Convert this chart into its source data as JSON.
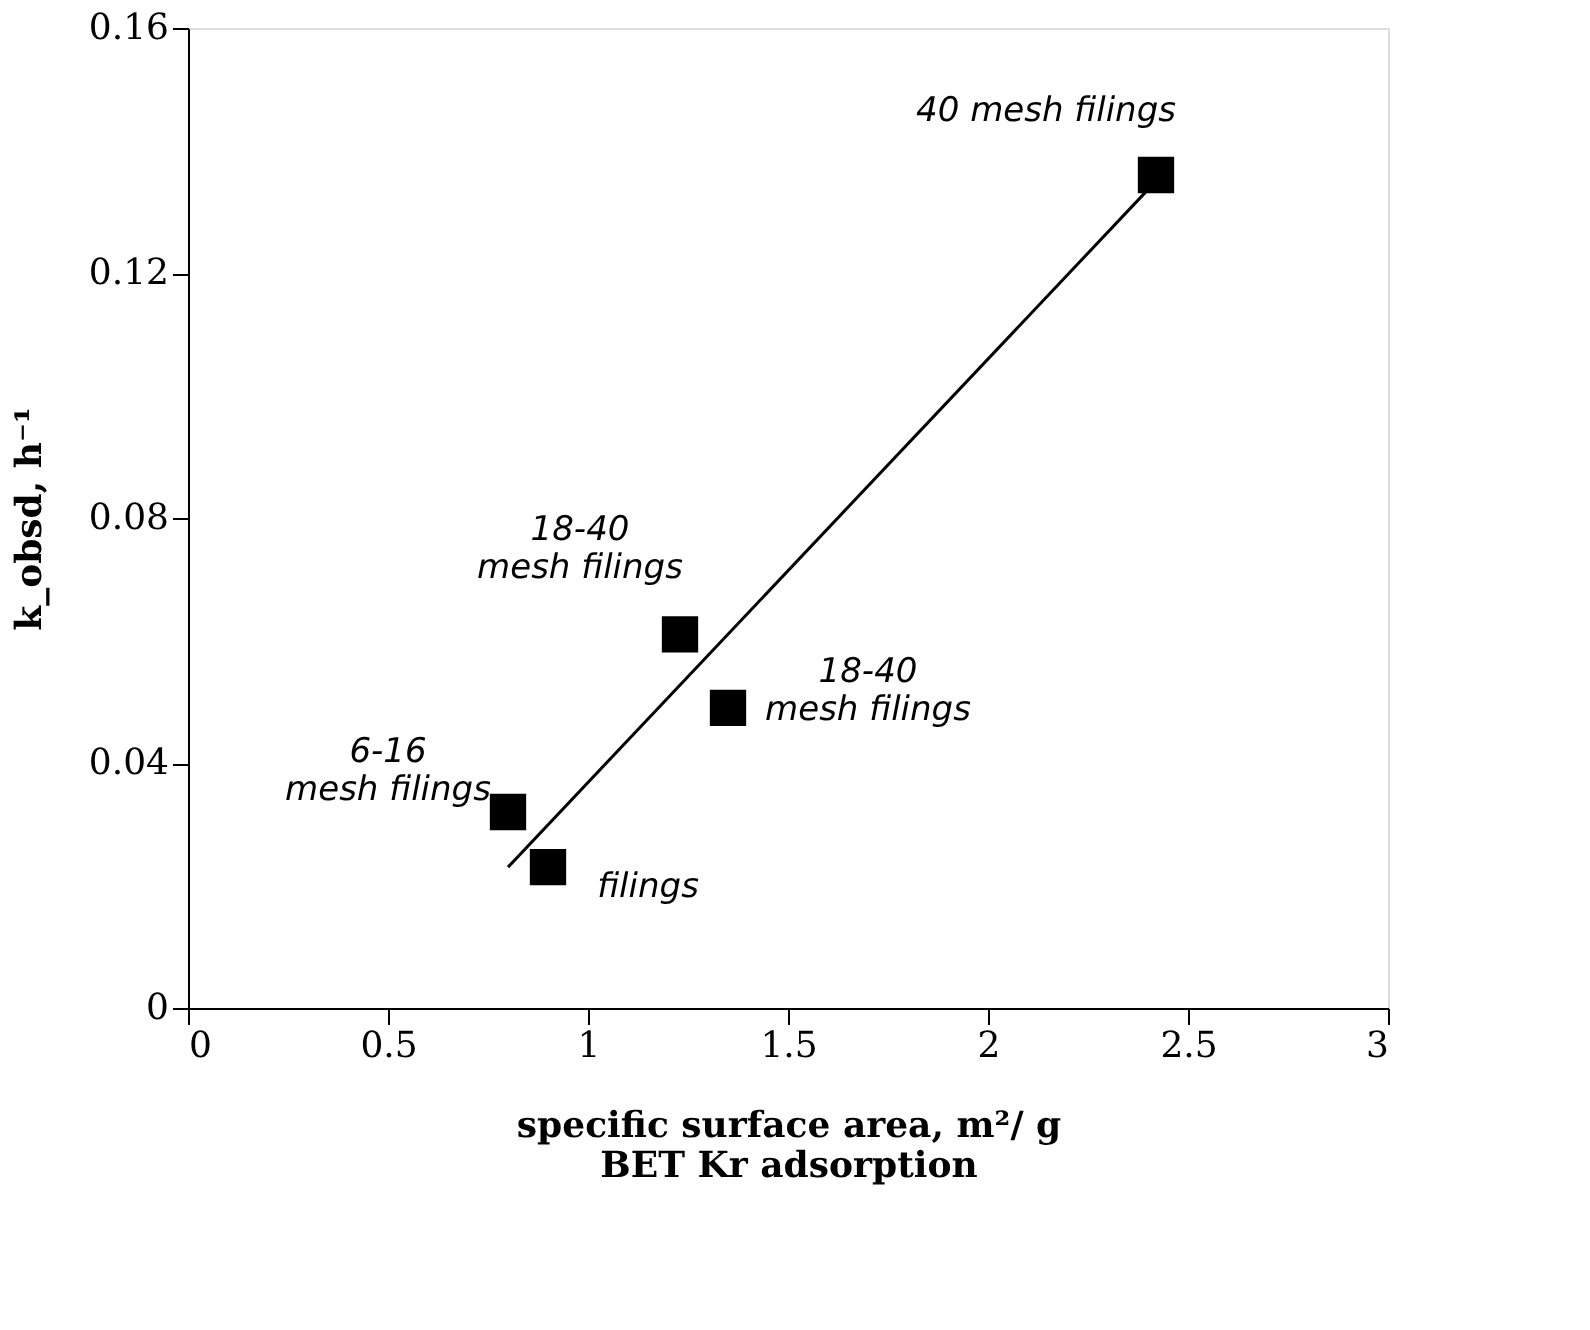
{
  "chart_data": {
    "type": "scatter",
    "xlabel": "specific surface area, m²/ g\nBET Kr adsorption",
    "ylabel": "k_obsd, h⁻¹",
    "xlim": [
      0,
      3
    ],
    "xticks": [
      0,
      0.5,
      1,
      1.5,
      2,
      2.5,
      3
    ],
    "ylim": [
      0,
      0.16
    ],
    "yticks": [
      0,
      0.04,
      0.08,
      0.12,
      0.16
    ],
    "series": [
      {
        "color": "#000000",
        "marker": "square",
        "x": [
          0.8,
          0.9,
          1.23,
          1.35,
          2.42
        ],
        "values": [
          0.032,
          0.023,
          0.061,
          0.049,
          0.136
        ]
      },
      {
        "type": "line",
        "color": "#000000",
        "x": [
          0.8,
          2.42
        ],
        "values": [
          0.023,
          0.135
        ]
      }
    ],
    "annotations": [
      {
        "text": "40 mesh filings",
        "x": 2.42,
        "y": 0.136
      },
      {
        "text": "18-40\nmesh filings",
        "x": 1.23,
        "y": 0.061
      },
      {
        "text": "18-40\nmesh filings",
        "x": 1.35,
        "y": 0.049
      },
      {
        "text": "6-16\nmesh filings",
        "x": 0.8,
        "y": 0.032
      },
      {
        "text": "filings",
        "x": 0.9,
        "y": 0.023
      }
    ]
  }
}
